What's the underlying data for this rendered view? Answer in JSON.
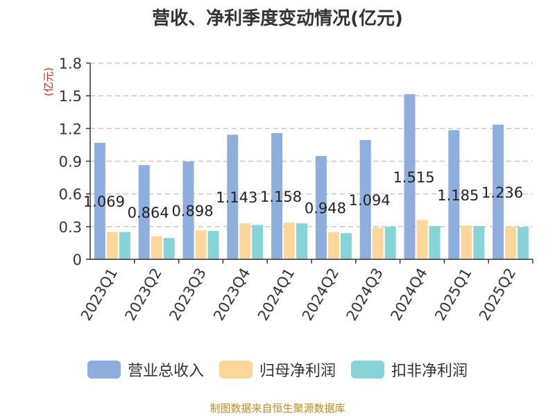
{
  "chart_data": {
    "type": "bar",
    "title": "营收、净利季度变动情况(亿元)",
    "ylabel": "(亿元)",
    "xlabel": "",
    "ylim": [
      0,
      1.8
    ],
    "yticks": [
      "0",
      "0.3",
      "0.6",
      "0.9",
      "1.2",
      "1.5",
      "1.8"
    ],
    "ytick_values": [
      0,
      0.3,
      0.6,
      0.9,
      1.2,
      1.5,
      1.8
    ],
    "categories": [
      "2023Q1",
      "2023Q2",
      "2023Q3",
      "2023Q4",
      "2024Q1",
      "2024Q2",
      "2024Q3",
      "2024Q4",
      "2025Q1",
      "2025Q2"
    ],
    "series": [
      {
        "name": "营业总收入",
        "color": "#8eaedd",
        "values": [
          1.069,
          0.864,
          0.898,
          1.143,
          1.158,
          0.948,
          1.094,
          1.515,
          1.185,
          1.236
        ],
        "labels": [
          "1.069",
          "0.864",
          "0.898",
          "1.143",
          "1.158",
          "0.948",
          "1.094",
          "1.515",
          "1.185",
          "1.236"
        ]
      },
      {
        "name": "归母净利润",
        "color": "#fdd699",
        "values": [
          0.25,
          0.21,
          0.265,
          0.33,
          0.335,
          0.25,
          0.29,
          0.36,
          0.31,
          0.3
        ]
      },
      {
        "name": "扣非净利润",
        "color": "#86d4d7",
        "values": [
          0.25,
          0.195,
          0.26,
          0.315,
          0.33,
          0.24,
          0.3,
          0.305,
          0.305,
          0.295
        ]
      }
    ],
    "grid": true,
    "legend_position": "bottom"
  },
  "source": "制图数据来自恒生聚源数据库"
}
